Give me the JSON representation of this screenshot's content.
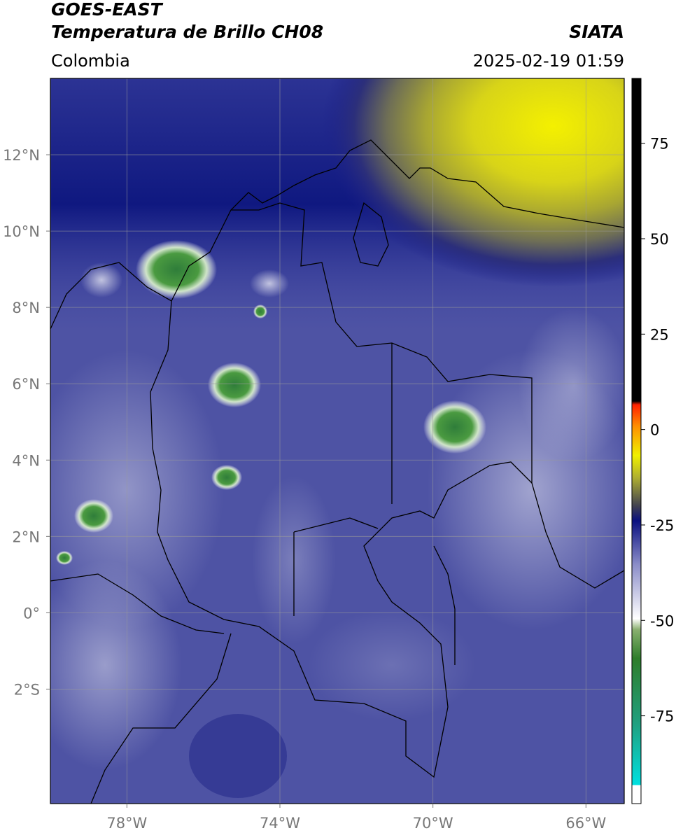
{
  "header": {
    "satellite": "GOES-EAST",
    "product": "Temperatura de Brillo CH08",
    "source": "SIATA",
    "region": "Colombia",
    "datetime": "2025-02-19 01:59"
  },
  "map": {
    "xlim": [
      -80,
      -65
    ],
    "ylim": [
      -5,
      14
    ],
    "xticks": [
      {
        "value": -78,
        "label": "78°W"
      },
      {
        "value": -74,
        "label": "74°W"
      },
      {
        "value": -70,
        "label": "70°W"
      },
      {
        "value": -66,
        "label": "66°W"
      }
    ],
    "yticks": [
      {
        "value": 12,
        "label": "12°N"
      },
      {
        "value": 10,
        "label": "10°N"
      },
      {
        "value": 8,
        "label": "8°N"
      },
      {
        "value": 6,
        "label": "6°N"
      },
      {
        "value": 4,
        "label": "4°N"
      },
      {
        "value": 2,
        "label": "2°N"
      },
      {
        "value": 0,
        "label": "0°"
      },
      {
        "value": -2,
        "label": "2°S"
      }
    ]
  },
  "colorbar": {
    "lim": [
      -98,
      92
    ],
    "ticks": [
      75,
      50,
      25,
      0,
      -25,
      -50,
      -75
    ]
  }
}
